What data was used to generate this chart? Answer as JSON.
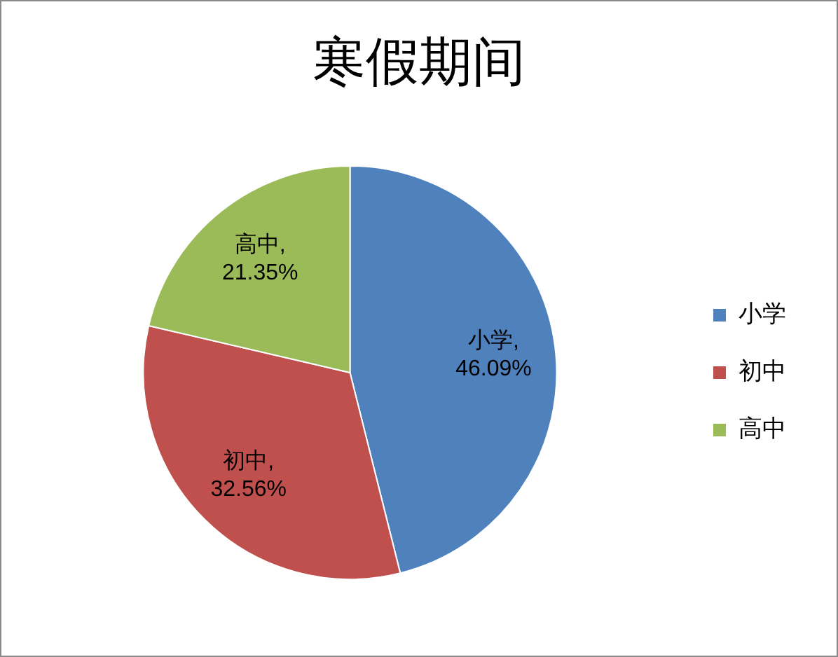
{
  "chart_data": {
    "type": "pie",
    "title": "寒假期间",
    "categories": [
      "小学",
      "初中",
      "高中"
    ],
    "values": [
      46.09,
      32.56,
      21.35
    ],
    "colors": [
      "#4f81bd",
      "#c0504d",
      "#9bbb59"
    ],
    "value_labels": [
      "小学, 46.09%",
      "初中, 32.56%",
      "高中, 21.35%"
    ],
    "legend": "right"
  }
}
